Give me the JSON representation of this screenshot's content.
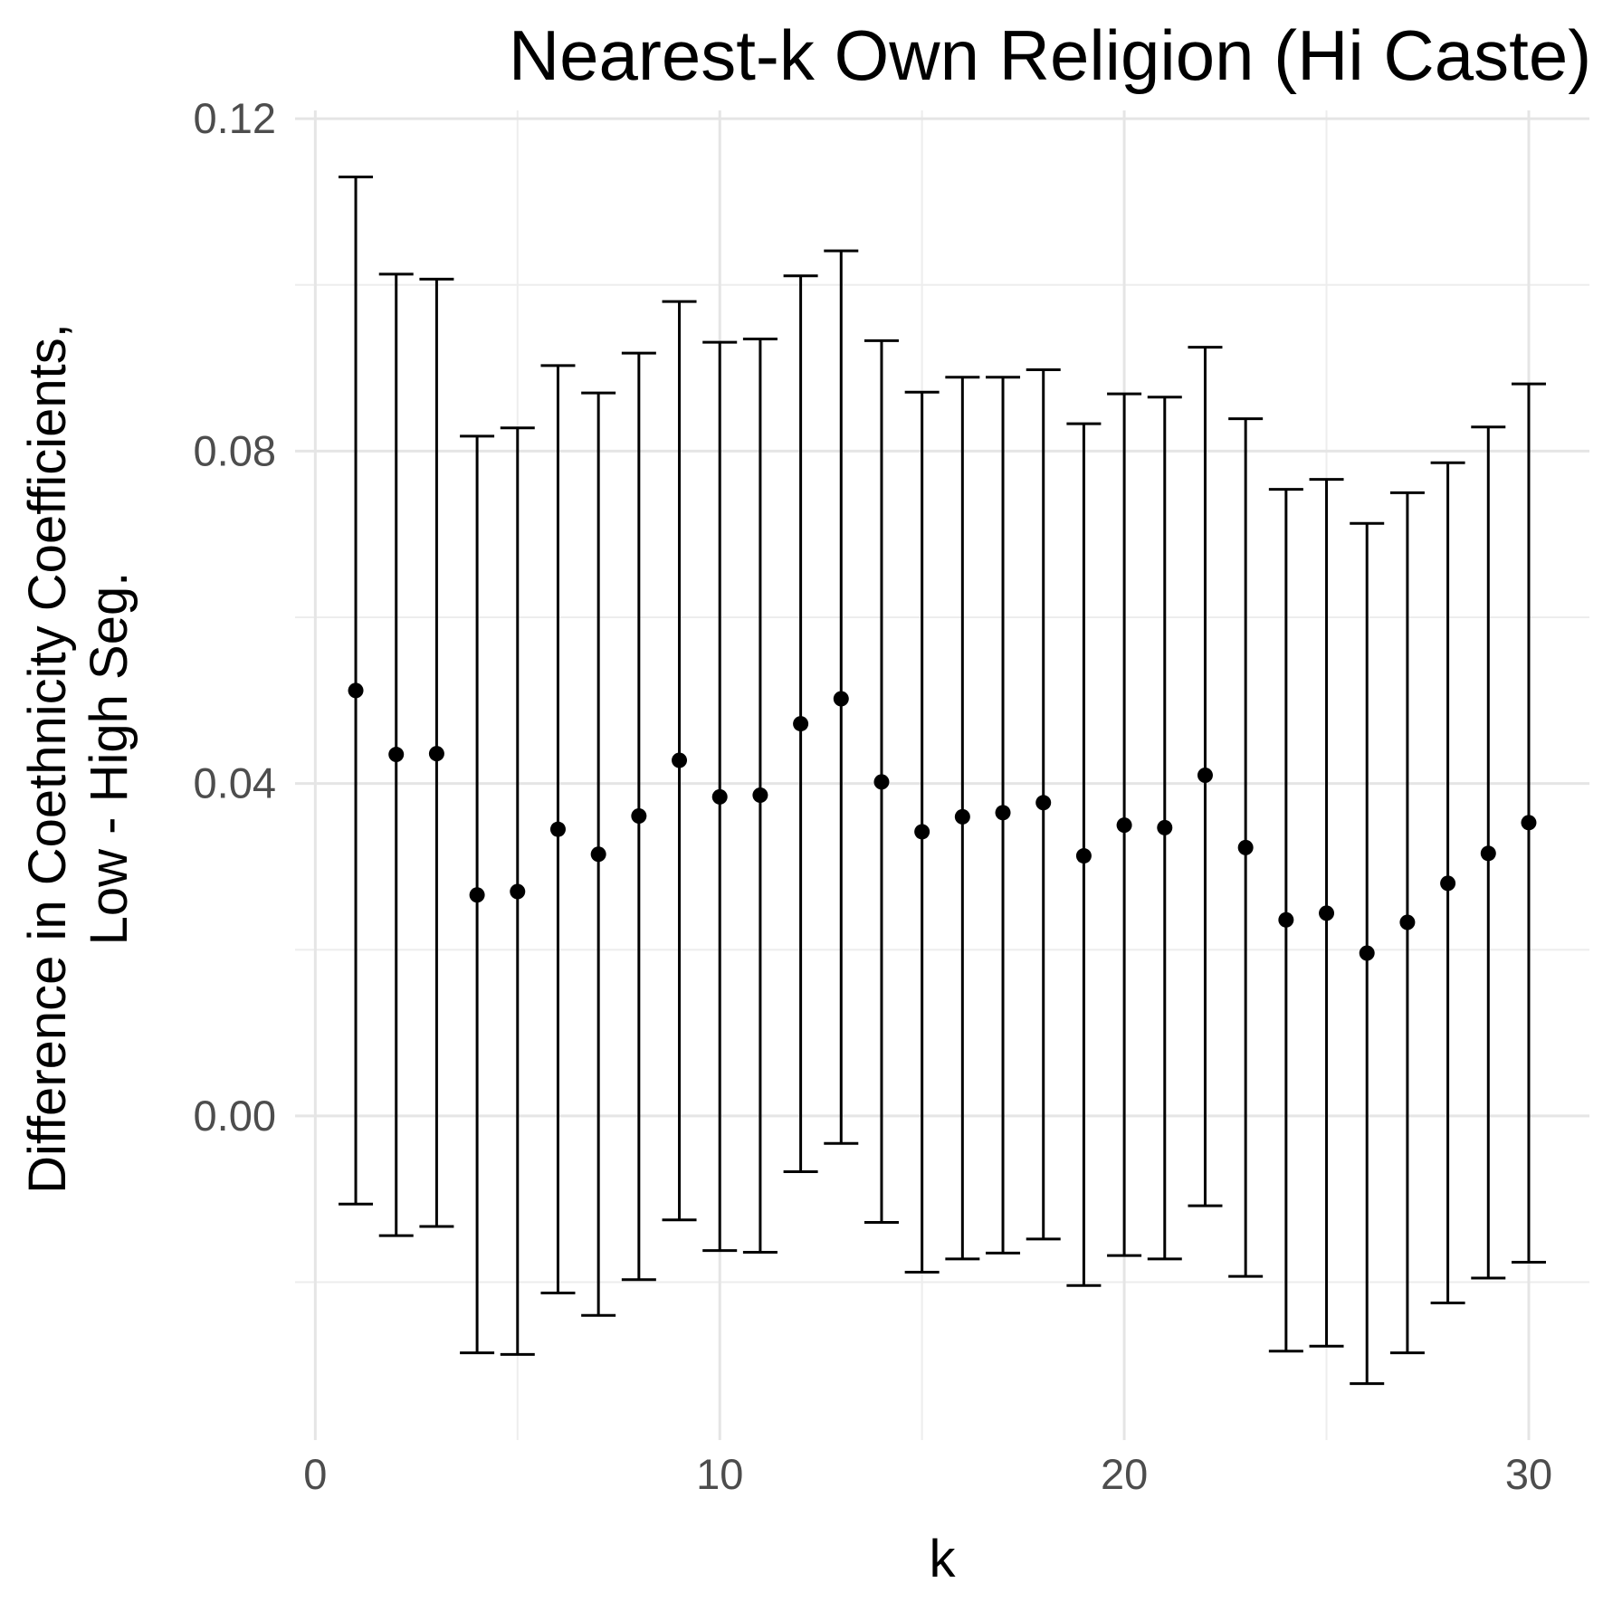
{
  "chart_data": {
    "type": "scatter",
    "title": "Nearest-k Own Religion (Hi Caste)",
    "xlabel": "k",
    "ylabel": [
      "Difference in Coethnicity Coefficients,",
      "Low - High Seg."
    ],
    "xlim": [
      -0.5,
      31.5
    ],
    "ylim": [
      -0.039,
      0.121
    ],
    "x_ticks": [
      0,
      10,
      20,
      30
    ],
    "x_tick_labels": [
      "0",
      "10",
      "20",
      "30"
    ],
    "y_ticks": [
      0.0,
      0.04,
      0.08,
      0.12
    ],
    "y_tick_labels": [
      "0.00",
      "0.04",
      "0.08",
      "0.12"
    ],
    "grid": true,
    "legend": "none",
    "series": [
      {
        "x": [
          1,
          2,
          3,
          4,
          5,
          6,
          7,
          8,
          9,
          10,
          11,
          12,
          13,
          14,
          15,
          16,
          17,
          18,
          19,
          20,
          21,
          22,
          23,
          24,
          25,
          26,
          27,
          28,
          29,
          30
        ],
        "estimate": [
          0.0512,
          0.0435,
          0.0436,
          0.0266,
          0.027,
          0.0345,
          0.0315,
          0.0361,
          0.0428,
          0.0384,
          0.0386,
          0.0472,
          0.0502,
          0.0402,
          0.0342,
          0.036,
          0.0365,
          0.0377,
          0.0313,
          0.035,
          0.0347,
          0.041,
          0.0323,
          0.0236,
          0.0244,
          0.0196,
          0.0233,
          0.028,
          0.0316,
          0.0353
        ],
        "lower": [
          -0.0106,
          -0.0144,
          -0.0133,
          -0.0285,
          -0.0287,
          -0.0213,
          -0.024,
          -0.0197,
          -0.0125,
          -0.0162,
          -0.0164,
          -0.0067,
          -0.0033,
          -0.0128,
          -0.0188,
          -0.0172,
          -0.0165,
          -0.0148,
          -0.0204,
          -0.0168,
          -0.0172,
          -0.0108,
          -0.0193,
          -0.0283,
          -0.0277,
          -0.0322,
          -0.0285,
          -0.0225,
          -0.0195,
          -0.0176
        ],
        "upper": [
          0.113,
          0.1013,
          0.1007,
          0.0818,
          0.0828,
          0.0903,
          0.087,
          0.0918,
          0.098,
          0.0931,
          0.0935,
          0.1011,
          0.1041,
          0.0933,
          0.0871,
          0.0889,
          0.0889,
          0.0898,
          0.0833,
          0.0869,
          0.0865,
          0.0925,
          0.0839,
          0.0754,
          0.0766,
          0.0713,
          0.075,
          0.0786,
          0.0829,
          0.0881
        ]
      }
    ]
  }
}
